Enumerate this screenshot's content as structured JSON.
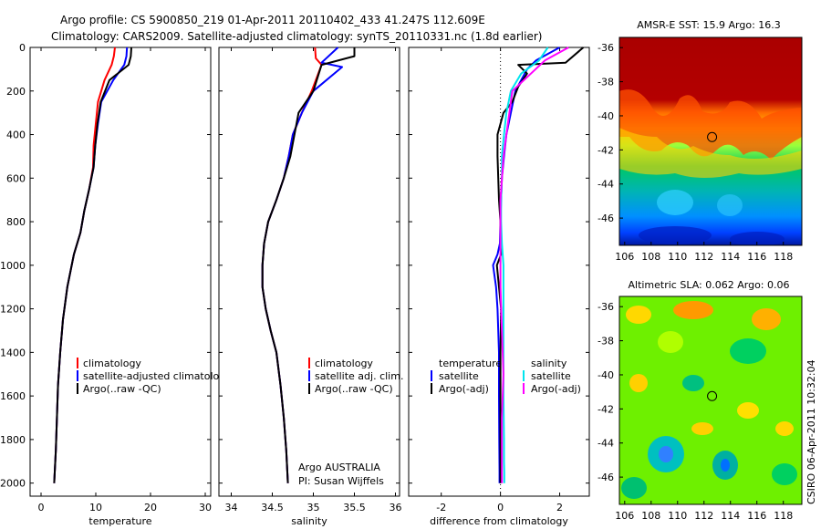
{
  "header": {
    "line1": "Argo profile: CS 5900850_219 01-Apr-2011 20110402_433 41.247S 112.609E",
    "line2": "Climatology: CARS2009. Satellite-adjusted climatology: synTS_20110331.nc (1.8d earlier)"
  },
  "side_text": "CSIRO 06-Apr-2011 10:32:04",
  "colors": {
    "clim": "#ff0000",
    "sat": "#0000ff",
    "argo": "#000000",
    "sal_sat": "#00e5ee",
    "sal_argo": "#ff00ff"
  },
  "panel_text": {
    "temp_legend": [
      "climatology",
      "satellite-adjusted climatology",
      "Argo(..raw -QC)"
    ],
    "sal_legend": [
      "climatology",
      "satellite adj. clim.",
      "Argo(..raw -QC)"
    ],
    "diff_legend_titles": [
      "temperature",
      "salinity"
    ],
    "diff_legend_items": [
      "satellite",
      "Argo(-adj)",
      "satellite",
      "Argo(-adj)"
    ],
    "argo_note": [
      "Argo AUSTRALIA",
      "PI: Susan Wijffels"
    ]
  },
  "chart_data": [
    {
      "type": "line",
      "xlabel": "temperature",
      "ylabel": "",
      "xlim": [
        -2,
        31
      ],
      "ylim": [
        2060,
        0
      ],
      "xticks": [
        0,
        10,
        20,
        30
      ],
      "yticks": [
        0,
        200,
        400,
        600,
        800,
        1000,
        1200,
        1400,
        1600,
        1800,
        2000
      ],
      "series": [
        {
          "name": "climatology",
          "color": "#ff0000",
          "x": [
            13.5,
            13.3,
            12.9,
            11.6,
            10.4,
            10,
            9.6,
            9.5,
            8.8,
            7.9,
            7.2,
            6.0,
            4.8,
            4.0,
            3.5,
            3.1,
            2.9,
            2.7,
            2.5,
            2.4
          ],
          "y": [
            0,
            40,
            80,
            150,
            250,
            350,
            450,
            550,
            650,
            750,
            850,
            950,
            1100,
            1250,
            1400,
            1550,
            1700,
            1850,
            1950,
            2000
          ]
        },
        {
          "name": "satellite-adjusted climatology",
          "color": "#0000ff",
          "x": [
            15.7,
            15.6,
            15.2,
            13.2,
            11.0,
            10.4,
            9.9,
            9.6,
            8.8,
            7.9,
            7.2,
            6.0,
            4.8,
            4.0,
            3.5,
            3.1,
            2.9,
            2.7,
            2.5,
            2.4
          ],
          "y": [
            0,
            40,
            80,
            150,
            250,
            350,
            450,
            550,
            650,
            750,
            850,
            950,
            1100,
            1250,
            1400,
            1550,
            1700,
            1850,
            1950,
            2000
          ]
        },
        {
          "name": "Argo(..raw -QC)",
          "color": "#000000",
          "x": [
            16.5,
            16.4,
            16.0,
            12.5,
            10.9,
            10.3,
            9.9,
            9.6,
            8.8,
            7.9,
            7.2,
            6.0,
            4.8,
            4.0,
            3.5,
            3.1,
            2.9,
            2.7,
            2.5,
            2.4
          ],
          "y": [
            0,
            40,
            80,
            150,
            250,
            350,
            450,
            550,
            650,
            750,
            850,
            950,
            1100,
            1250,
            1400,
            1550,
            1700,
            1850,
            1950,
            2000
          ]
        }
      ]
    },
    {
      "type": "line",
      "xlabel": "salinity",
      "ylabel": "",
      "xlim": [
        33.85,
        36.05
      ],
      "ylim": [
        2060,
        0
      ],
      "xticks": [
        34,
        34.5,
        35,
        35.5,
        36
      ],
      "series": [
        {
          "name": "climatology",
          "color": "#ff0000",
          "x": [
            35.02,
            35.03,
            35.1,
            34.98,
            34.86,
            34.75,
            34.7,
            34.64,
            34.55,
            34.45,
            34.4,
            34.38,
            34.38,
            34.42,
            34.48,
            34.55,
            34.6,
            34.64,
            34.67,
            34.69
          ],
          "y": [
            0,
            50,
            80,
            200,
            300,
            400,
            500,
            600,
            700,
            800,
            900,
            1000,
            1100,
            1200,
            1300,
            1400,
            1550,
            1700,
            1850,
            2000
          ]
        },
        {
          "name": "satellite adj. clim.",
          "color": "#0000ff",
          "x": [
            35.3,
            35.1,
            35.35,
            35.0,
            34.86,
            34.75,
            34.7,
            34.64,
            34.55,
            34.45,
            34.4,
            34.38,
            34.38,
            34.42,
            34.48,
            34.55,
            34.6,
            34.64,
            34.67,
            34.69
          ],
          "y": [
            0,
            70,
            90,
            200,
            300,
            400,
            500,
            600,
            700,
            800,
            900,
            1000,
            1100,
            1200,
            1300,
            1400,
            1550,
            1700,
            1850,
            2000
          ]
        },
        {
          "name": "Argo(..raw -QC)",
          "color": "#000000",
          "x": [
            35.5,
            35.5,
            35.1,
            35.0,
            34.82,
            34.77,
            34.72,
            34.64,
            34.55,
            34.45,
            34.4,
            34.38,
            34.38,
            34.42,
            34.48,
            34.55,
            34.6,
            34.64,
            34.67,
            34.69
          ],
          "y": [
            0,
            40,
            80,
            200,
            300,
            400,
            500,
            600,
            700,
            800,
            900,
            1000,
            1100,
            1200,
            1300,
            1400,
            1550,
            1700,
            1850,
            2000
          ]
        }
      ]
    },
    {
      "type": "line",
      "xlabel": "difference from climatology",
      "ylabel": "",
      "xlim": [
        -3.1,
        3.0
      ],
      "ylim": [
        2060,
        0
      ],
      "xticks": [
        -2,
        0,
        2
      ],
      "series": [
        {
          "name": "satellite",
          "color": "#0000ff",
          "x": [
            2.0,
            1.2,
            0.9,
            0.5,
            0.35,
            0.2,
            0.12,
            0.05,
            0.02,
            0,
            -0.02,
            -0.1,
            -0.25,
            -0.15,
            -0.1,
            -0.05,
            -0.05,
            -0.04,
            -0.03,
            -0.03
          ],
          "y": [
            0,
            60,
            100,
            200,
            300,
            400,
            500,
            600,
            700,
            800,
            900,
            950,
            1000,
            1100,
            1200,
            1400,
            1600,
            1800,
            1950,
            2000
          ]
        },
        {
          "name": "Argo(-adj)",
          "color": "#000000",
          "x": [
            2.8,
            2.2,
            0.6,
            0.9,
            0.6,
            0.4,
            0.1,
            -0.1,
            -0.1,
            -0.05,
            0,
            0.02,
            -0.12,
            -0.05,
            0.02,
            0,
            0,
            0,
            0,
            0
          ],
          "y": [
            0,
            70,
            80,
            120,
            180,
            250,
            300,
            400,
            500,
            700,
            800,
            950,
            1000,
            1100,
            1200,
            1400,
            1600,
            1800,
            1950,
            2000
          ]
        },
        {
          "name": "satellite",
          "color": "#00e5ee",
          "x": [
            1.6,
            1.3,
            0.7,
            0.35,
            0.2,
            0.12,
            0.05,
            0.05,
            0.02,
            0.02,
            0.05,
            0.1,
            0.1,
            0.1,
            0.1,
            0.1,
            0.12,
            0.12,
            0.13,
            0.13
          ],
          "y": [
            0,
            60,
            120,
            200,
            300,
            400,
            500,
            600,
            700,
            800,
            900,
            1000,
            1100,
            1200,
            1400,
            1600,
            1800,
            1900,
            1950,
            2000
          ]
        },
        {
          "name": "Argo(-adj)",
          "color": "#ff00ff",
          "x": [
            2.3,
            1.5,
            0.4,
            0.3,
            0.1,
            0,
            0,
            0,
            0,
            0.05,
            0.1,
            0.05,
            0.05,
            0.05,
            0.05
          ],
          "y": [
            0,
            60,
            200,
            300,
            500,
            700,
            900,
            1000,
            1100,
            1300,
            1500,
            1700,
            1850,
            1950,
            2000
          ]
        }
      ]
    },
    {
      "type": "heatmap",
      "title": "AMSR-E SST: 15.9 Argo: 16.3",
      "xlim": [
        105.6,
        119.4
      ],
      "ylim": [
        -47.6,
        -35.4
      ],
      "xticks": [
        106,
        108,
        110,
        112,
        114,
        116,
        118
      ],
      "yticks": [
        -36,
        -38,
        -40,
        -42,
        -44,
        -46
      ],
      "marker": {
        "lon": 112.609,
        "lat": -41.247
      }
    },
    {
      "type": "heatmap",
      "title": "Altimetric SLA: 0.062 Argo: 0.06",
      "xlim": [
        105.6,
        119.4
      ],
      "ylim": [
        -47.6,
        -35.4
      ],
      "xticks": [
        106,
        108,
        110,
        112,
        114,
        116,
        118
      ],
      "yticks": [
        -36,
        -38,
        -40,
        -42,
        -44,
        -46
      ],
      "marker": {
        "lon": 112.609,
        "lat": -41.247
      }
    }
  ]
}
